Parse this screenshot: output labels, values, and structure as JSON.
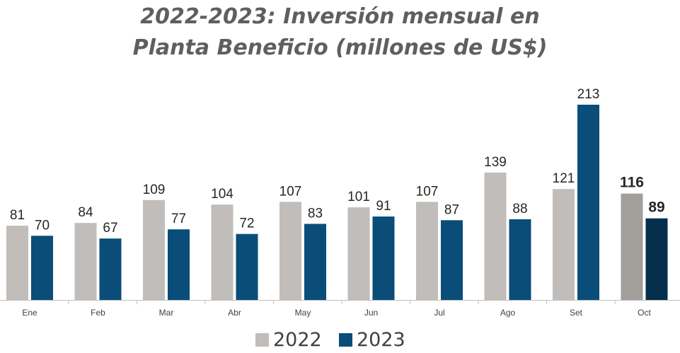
{
  "chart_data": {
    "type": "bar",
    "title_lines": [
      "2022-2023: Inversión mensual en",
      "Planta Beneficio (millones de US$)"
    ],
    "categories": [
      "Ene",
      "Feb",
      "Mar",
      "Abr",
      "May",
      "Jun",
      "Jul",
      "Ago",
      "Set",
      "Oct"
    ],
    "series": [
      {
        "name": "2022",
        "values": [
          81,
          84,
          109,
          104,
          107,
          101,
          107,
          139,
          121,
          116
        ]
      },
      {
        "name": "2023",
        "values": [
          70,
          67,
          77,
          72,
          83,
          91,
          87,
          88,
          213,
          89
        ]
      }
    ],
    "highlight_category": "Oct",
    "xlabel": "",
    "ylabel": "",
    "ylim": [
      0,
      230
    ],
    "grid": false,
    "legend_position": "bottom-center",
    "colors": {
      "series_2022": "#c0bdba",
      "series_2023": "#0a4d78",
      "highlight_2022": "#a29f9b",
      "highlight_2023": "#062f4e",
      "label_text": "#262626",
      "axis": "#bfbfbf"
    }
  }
}
